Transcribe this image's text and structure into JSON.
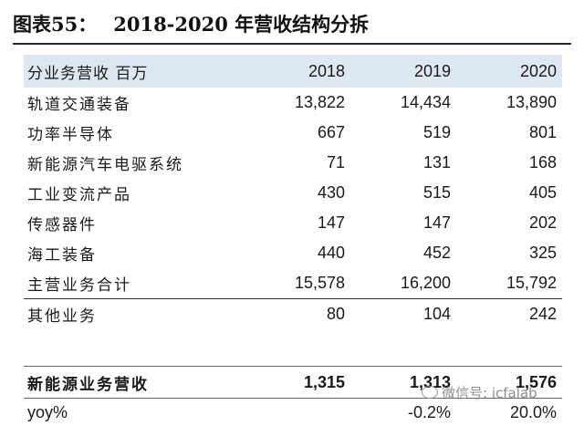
{
  "title": {
    "figure": "图表55：",
    "text": "2018-2020 年营收结构分拆"
  },
  "table": {
    "header": {
      "label": "分业务营收 百万",
      "years": [
        "2018",
        "2019",
        "2020"
      ]
    },
    "rows": [
      {
        "label": "轨道交通装备",
        "values": [
          "13,822",
          "14,434",
          "13,890"
        ]
      },
      {
        "label": "功率半导体",
        "values": [
          "667",
          "519",
          "801"
        ]
      },
      {
        "label": "新能源汽车电驱系统",
        "values": [
          "71",
          "131",
          "168"
        ]
      },
      {
        "label": "工业变流产品",
        "values": [
          "430",
          "515",
          "405"
        ]
      },
      {
        "label": "传感器件",
        "values": [
          "147",
          "147",
          "202"
        ]
      },
      {
        "label": "海工装备",
        "values": [
          "440",
          "452",
          "325"
        ]
      },
      {
        "label": "主营业务合计",
        "values": [
          "15,578",
          "16,200",
          "15,792"
        ]
      },
      {
        "label": "其他业务",
        "values": [
          "80",
          "104",
          "242"
        ]
      },
      {
        "label": "新能源业务营收",
        "values": [
          "1,315",
          "1,313",
          "1,576"
        ]
      },
      {
        "label": "yoy%",
        "values": [
          "",
          "-0.2%",
          "20.0%"
        ]
      }
    ]
  },
  "watermark": {
    "text": "微信号: icfalab"
  }
}
